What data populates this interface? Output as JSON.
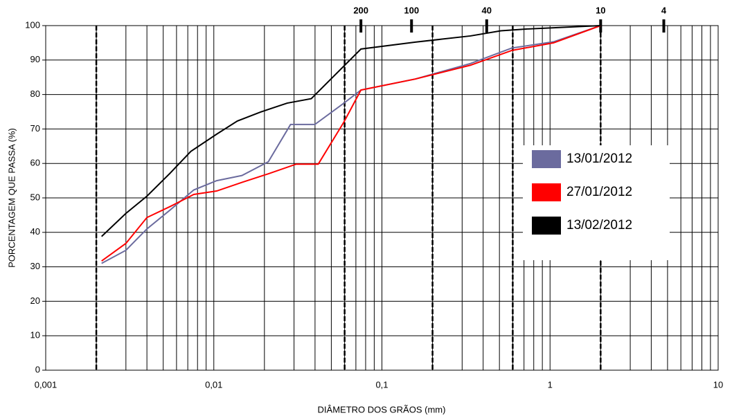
{
  "chart_data": {
    "type": "line",
    "xlabel": "DIÂMETRO DOS GRÃOS (mm)",
    "ylabel": "PORCENTAGEM QUE PASSA (%)",
    "xscale": "log",
    "xlim": [
      0.001,
      10
    ],
    "ylim": [
      0,
      100
    ],
    "xticks": [
      {
        "value": 0.001,
        "label": "0,001"
      },
      {
        "value": 0.01,
        "label": "0,01"
      },
      {
        "value": 0.1,
        "label": "0,1"
      },
      1,
      10
    ],
    "yticks": [
      0,
      10,
      20,
      30,
      40,
      50,
      60,
      70,
      80,
      90,
      100
    ],
    "grid": true,
    "dashed_lines": [
      0.002,
      0.06,
      0.2,
      0.6,
      2
    ],
    "sieves": [
      {
        "value": 0.075,
        "label": "200"
      },
      {
        "value": 0.15,
        "label": "100"
      },
      {
        "value": 0.42,
        "label": "40"
      },
      {
        "value": 2,
        "label": "10"
      },
      {
        "value": 4.75,
        "label": "4"
      }
    ],
    "series": [
      {
        "name": "13/01/2012",
        "color": "#6b6b9e",
        "x": [
          0.00215,
          0.003,
          0.004,
          0.0055,
          0.0076,
          0.0104,
          0.0147,
          0.0211,
          0.0286,
          0.0399,
          0.0594,
          0.075,
          0.158,
          0.336,
          0.594,
          1.05,
          2
        ],
        "values": [
          31,
          34.8,
          41,
          46.5,
          52.3,
          55,
          56.5,
          60.5,
          71.3,
          71.3,
          77.5,
          81.3,
          84.5,
          89,
          93.5,
          95.3,
          100
        ]
      },
      {
        "name": "27/01/2012",
        "color": "#ff0000",
        "x": [
          0.00215,
          0.003,
          0.004,
          0.0055,
          0.0076,
          0.0104,
          0.0147,
          0.0211,
          0.0309,
          0.0418,
          0.0594,
          0.075,
          0.158,
          0.336,
          0.594,
          1.05,
          2
        ],
        "values": [
          31.7,
          36.8,
          44.3,
          47.5,
          51,
          52,
          54.5,
          57,
          59.8,
          59.8,
          72,
          81.3,
          84.5,
          88.5,
          92.8,
          95,
          100
        ]
      },
      {
        "name": "13/02/2012",
        "color": "#000000",
        "x": [
          0.00215,
          0.003,
          0.004,
          0.00545,
          0.0073,
          0.0104,
          0.0138,
          0.0192,
          0.0273,
          0.038,
          0.075,
          0.158,
          0.336,
          0.51,
          0.718,
          2
        ],
        "values": [
          38.8,
          45.5,
          50.5,
          57,
          63.5,
          68.5,
          72.3,
          75,
          77.5,
          78.8,
          93.2,
          95.2,
          97,
          98.5,
          99,
          100
        ]
      }
    ]
  }
}
